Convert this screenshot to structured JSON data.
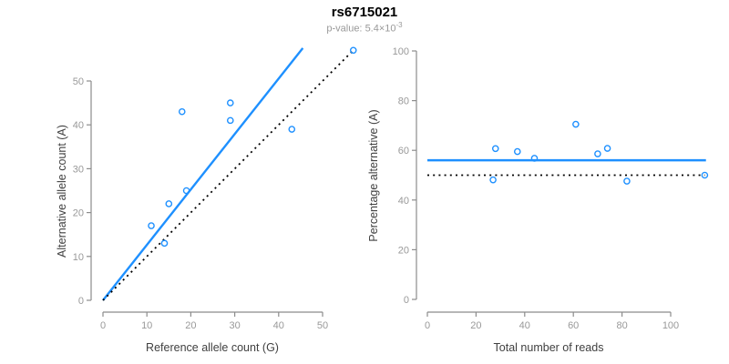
{
  "header": {
    "title": "rs6715021",
    "subtitle_prefix": "p-value: ",
    "subtitle_value": "5.4×10",
    "subtitle_exponent": "-3"
  },
  "colors": {
    "accent_blue": "#1E90FF",
    "identity_black": "#000000",
    "axis_line": "#8c8c8c",
    "tick_label": "#999999",
    "axis_title": "#404040",
    "title_text": "#000000",
    "subtitle_text": "#999999",
    "background": "#ffffff"
  },
  "chart_data": [
    {
      "type": "scatter",
      "panel": "left",
      "xlabel": "Reference allele count (G)",
      "ylabel": "Alternative allele count (A)",
      "xticks": [
        0,
        10,
        20,
        30,
        40,
        50
      ],
      "yticks": [
        0,
        10,
        20,
        30,
        40,
        50
      ],
      "xlim": [
        0,
        57.5
      ],
      "ylim": [
        0,
        57.5
      ],
      "grid": false,
      "legend": "none",
      "point_style": "open-circle",
      "point_color": "#1E90FF",
      "points": [
        [
          11,
          17
        ],
        [
          14,
          13
        ],
        [
          15,
          22
        ],
        [
          18,
          43
        ],
        [
          19,
          25
        ],
        [
          29,
          41
        ],
        [
          29,
          45
        ],
        [
          43,
          39
        ],
        [
          57,
          57
        ]
      ],
      "lines": [
        {
          "name": "fitted-ratio",
          "style": "solid",
          "color": "#1E90FF",
          "from": [
            0,
            0
          ],
          "to": [
            45.5,
            57.5
          ]
        },
        {
          "name": "identity",
          "style": "dotted",
          "color": "#000000",
          "from": [
            0,
            0
          ],
          "to": [
            57,
            57
          ]
        }
      ]
    },
    {
      "type": "scatter",
      "panel": "right",
      "xlabel": "Total number of reads",
      "ylabel": "Percentage alternative (A)",
      "xticks": [
        0,
        20,
        40,
        60,
        80,
        100
      ],
      "yticks": [
        0,
        20,
        40,
        60,
        80,
        100
      ],
      "xlim": [
        0,
        115
      ],
      "ylim": [
        0,
        100
      ],
      "grid": false,
      "legend": "none",
      "point_style": "open-circle",
      "point_color": "#1E90FF",
      "points": [
        [
          27,
          48.1
        ],
        [
          28,
          60.7
        ],
        [
          37,
          59.5
        ],
        [
          44,
          56.8
        ],
        [
          61,
          70.5
        ],
        [
          70,
          58.6
        ],
        [
          74,
          60.8
        ],
        [
          82,
          47.6
        ],
        [
          114,
          50
        ]
      ],
      "lines": [
        {
          "name": "mean-percentage",
          "style": "solid",
          "color": "#1E90FF",
          "from": [
            0,
            56
          ],
          "to": [
            114.5,
            56
          ]
        },
        {
          "name": "expected-50-percent",
          "style": "dotted",
          "color": "#000000",
          "from": [
            0,
            50
          ],
          "to": [
            114,
            50
          ]
        }
      ]
    }
  ]
}
